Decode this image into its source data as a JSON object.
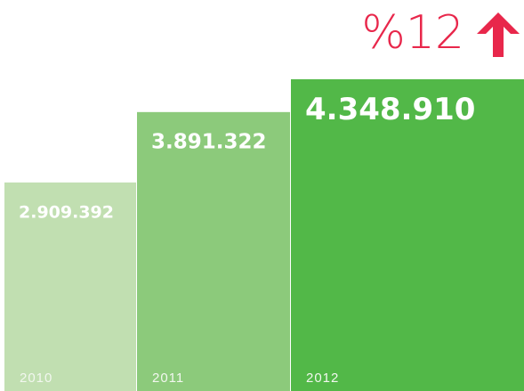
{
  "chart_data": {
    "type": "bar",
    "annotation": "%12",
    "categories": [
      "2010",
      "2011",
      "2012"
    ],
    "values": [
      2909392,
      3891322,
      4348910
    ],
    "value_labels": [
      "2.909.392",
      "3.891.322",
      "4.348.910"
    ],
    "colors": [
      "#c1dfb1",
      "#8cca7b",
      "#52b848"
    ],
    "annotation_color": "#e8274b"
  }
}
